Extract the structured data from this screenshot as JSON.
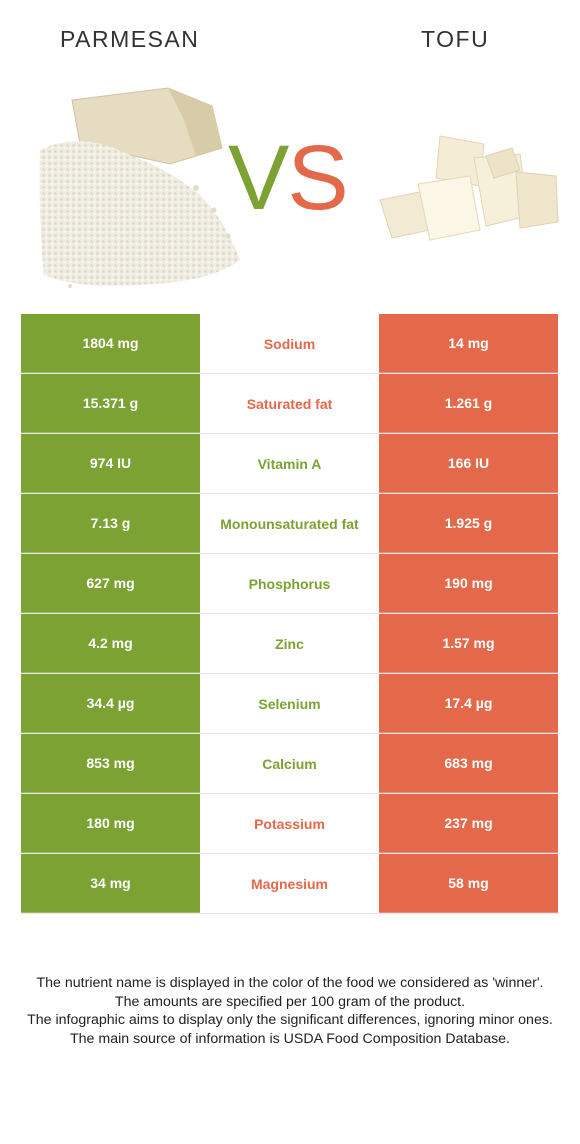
{
  "header": {
    "left_food": "PARMESAN",
    "right_food": "TOFU",
    "vs_v": "V",
    "vs_s": "S"
  },
  "colors": {
    "left_food": "#7ba233",
    "right_food": "#e3694a"
  },
  "images": {
    "left": "parmesan-image",
    "right": "tofu-image"
  },
  "rows": [
    {
      "left": "1804 mg",
      "nutrient": "Sodium",
      "right": "14 mg",
      "winner": "right"
    },
    {
      "left": "15.371 g",
      "nutrient": "Saturated fat",
      "right": "1.261 g",
      "winner": "right"
    },
    {
      "left": "974 IU",
      "nutrient": "Vitamin A",
      "right": "166 IU",
      "winner": "left"
    },
    {
      "left": "7.13 g",
      "nutrient": "Monounsaturated fat",
      "right": "1.925 g",
      "winner": "left"
    },
    {
      "left": "627 mg",
      "nutrient": "Phosphorus",
      "right": "190 mg",
      "winner": "left"
    },
    {
      "left": "4.2 mg",
      "nutrient": "Zinc",
      "right": "1.57 mg",
      "winner": "left"
    },
    {
      "left": "34.4 µg",
      "nutrient": "Selenium",
      "right": "17.4 µg",
      "winner": "left"
    },
    {
      "left": "853 mg",
      "nutrient": "Calcium",
      "right": "683 mg",
      "winner": "left"
    },
    {
      "left": "180 mg",
      "nutrient": "Potassium",
      "right": "237 mg",
      "winner": "right"
    },
    {
      "left": "34 mg",
      "nutrient": "Magnesium",
      "right": "58 mg",
      "winner": "right"
    }
  ],
  "footnote": {
    "line1": "The nutrient name is displayed in the color of the food we considered as 'winner'.",
    "line2": "The amounts are specified per 100 gram of the product.",
    "line3": "The infographic aims to display only the significant differences, ignoring minor ones.",
    "line4": "The main source of information is USDA Food Composition Database."
  }
}
